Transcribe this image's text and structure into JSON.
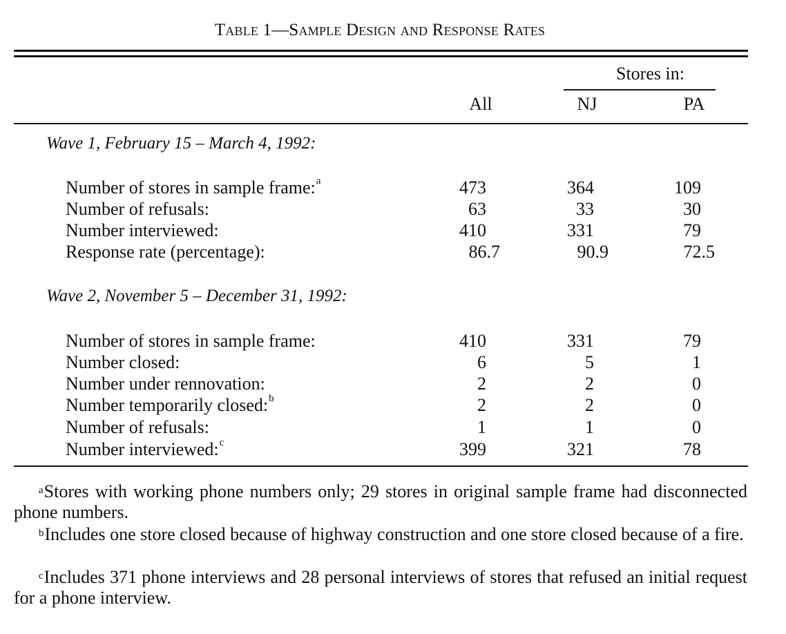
{
  "table": {
    "caption": "Table 1—Sample Design and Response Rates",
    "columns": {
      "group_label": "Stores in:",
      "all": "All",
      "nj": "NJ",
      "pa": "PA"
    },
    "wave1": {
      "title": "Wave 1, February 15 – March 4, 1992:",
      "rows": [
        {
          "label": "Number of stores in sample frame:",
          "mark": "a",
          "all": "473",
          "nj": "364",
          "pa": "109"
        },
        {
          "label": "Number of refusals:",
          "mark": "",
          "all": "63",
          "nj": "33",
          "pa": "30"
        },
        {
          "label": "Number interviewed:",
          "mark": "",
          "all": "410",
          "nj": "331",
          "pa": "79"
        },
        {
          "label": "Response rate (percentage):",
          "mark": "",
          "all": "86.7",
          "nj": "90.9",
          "pa": "72.5"
        }
      ]
    },
    "wave2": {
      "title": "Wave 2, November 5 – December 31, 1992:",
      "rows": [
        {
          "label": "Number of stores in sample frame:",
          "mark": "",
          "all": "410",
          "nj": "331",
          "pa": "79"
        },
        {
          "label": "Number closed:",
          "mark": "",
          "all": "6",
          "nj": "5",
          "pa": "1"
        },
        {
          "label": "Number under rennovation:",
          "mark": "",
          "all": "2",
          "nj": "2",
          "pa": "0"
        },
        {
          "label": "Number temporarily closed:",
          "mark": "b",
          "all": "2",
          "nj": "2",
          "pa": "0"
        },
        {
          "label": "Number of refusals:",
          "mark": "",
          "all": "1",
          "nj": "1",
          "pa": "0"
        },
        {
          "label": "Number interviewed:",
          "mark": "c",
          "all": "399",
          "nj": "321",
          "pa": "78"
        }
      ]
    },
    "footnotes": [
      {
        "mark": "a",
        "text": "Stores with working phone numbers only; 29 stores in original sample frame had disconnected phone numbers."
      },
      {
        "mark": "b",
        "text": "Includes one store closed because of highway construction and one store closed because of a fire."
      },
      {
        "mark": "c",
        "text": "Includes 371 phone interviews and 28 personal interviews of stores that refused an initial request for a phone interview."
      }
    ]
  }
}
